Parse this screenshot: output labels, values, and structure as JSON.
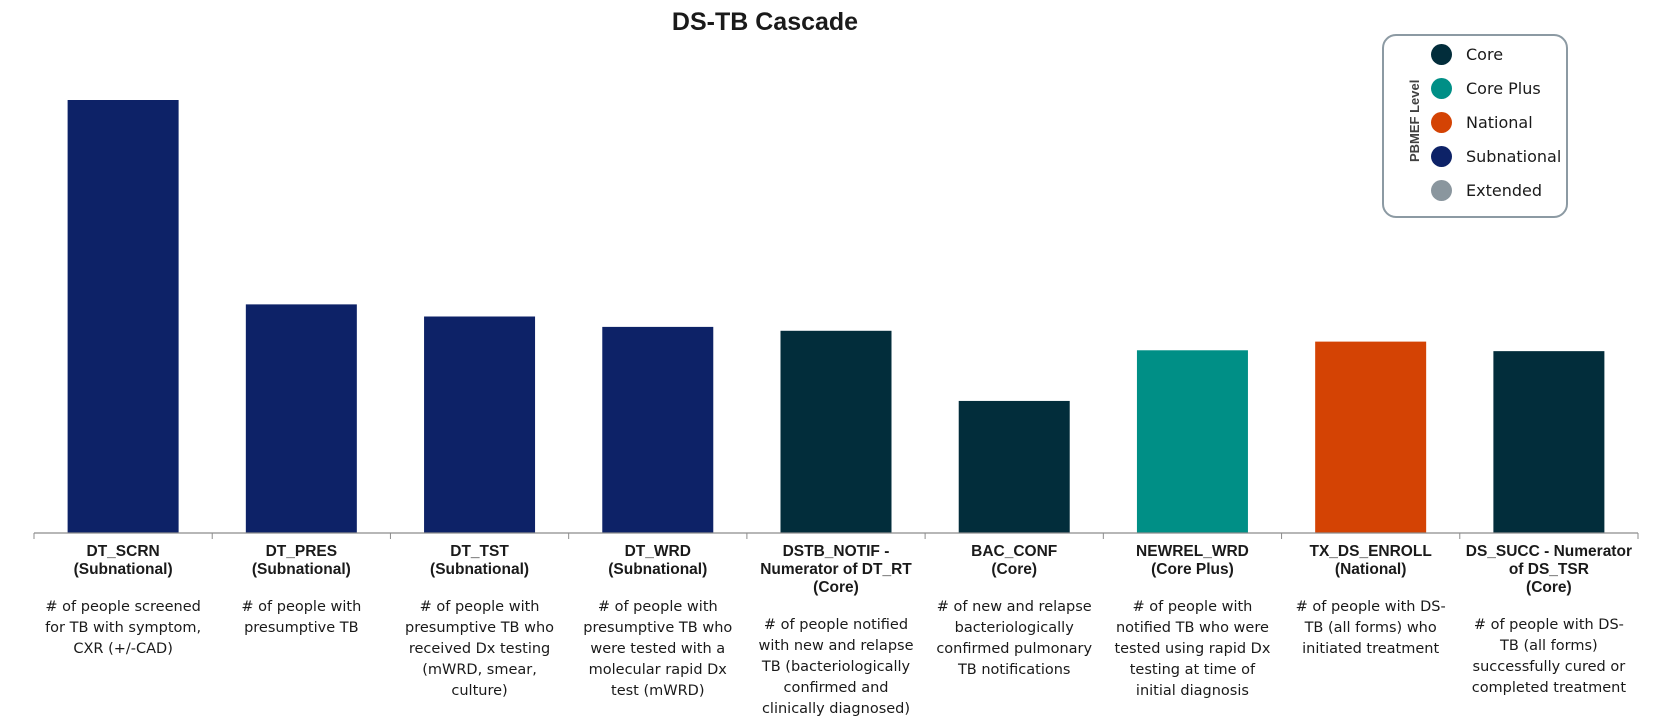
{
  "chart_data": {
    "type": "bar",
    "title": "DS-TB Cascade",
    "xlabel": "",
    "ylabel": "",
    "ylim": [
      0,
      100
    ],
    "grid": false,
    "legend_position": "top-right",
    "legend_title": "PBMEF Level",
    "legend": [
      {
        "label": "Core",
        "color": "#022d3b"
      },
      {
        "label": "Core Plus",
        "color": "#008f86"
      },
      {
        "label": "National",
        "color": "#d44304"
      },
      {
        "label": "Subnational",
        "color": "#0d2267"
      },
      {
        "label": "Extended",
        "color": "#8a969e"
      }
    ],
    "categories": [
      {
        "code": "DT_SCRN",
        "level_label": "(Subnational)",
        "description": "# of people screened for TB with symptom, CXR (+/-CAD)",
        "value": 100,
        "color": "#0d2267"
      },
      {
        "code": "DT_PRES",
        "level_label": "(Subnational)",
        "description": "# of people with presumptive TB",
        "value": 52.8,
        "color": "#0d2267"
      },
      {
        "code": "DT_TST",
        "level_label": "(Subnational)",
        "description": "# of people with presumptive TB  who received Dx testing (mWRD, smear, culture)",
        "value": 50,
        "color": "#0d2267"
      },
      {
        "code": "DT_WRD",
        "level_label": "(Subnational)",
        "description": "# of people with presumptive TB who were tested with a molecular rapid Dx test (mWRD)",
        "value": 47.6,
        "color": "#0d2267"
      },
      {
        "code": "DSTB_NOTIF - Numerator of DT_RT",
        "level_label": "(Core)",
        "description": "# of people notified with new and relapse TB (bacteriologically confirmed and clinically diagnosed)",
        "value": 46.7,
        "color": "#022d3b"
      },
      {
        "code": "BAC_CONF",
        "level_label": "(Core)",
        "description": "# of new and relapse bacteriologically confirmed pulmonary TB notifications",
        "value": 30.5,
        "color": "#022d3b"
      },
      {
        "code": "NEWREL_WRD",
        "level_label": "(Core Plus)",
        "description": "# of people with notified TB who were tested using rapid Dx testing at time of initial diagnosis",
        "value": 42.2,
        "color": "#008f86"
      },
      {
        "code": "TX_DS_ENROLL",
        "level_label": "(National)",
        "description": "# of people with DS-TB (all forms) who initiated treatment",
        "value": 44.2,
        "color": "#d44304"
      },
      {
        "code": "DS_SUCC - Numerator of DS_TSR",
        "level_label": "(Core)",
        "description": "# of people with DS-TB (all forms) successfully cured or  completed treatment",
        "value": 42,
        "color": "#022d3b"
      }
    ]
  }
}
